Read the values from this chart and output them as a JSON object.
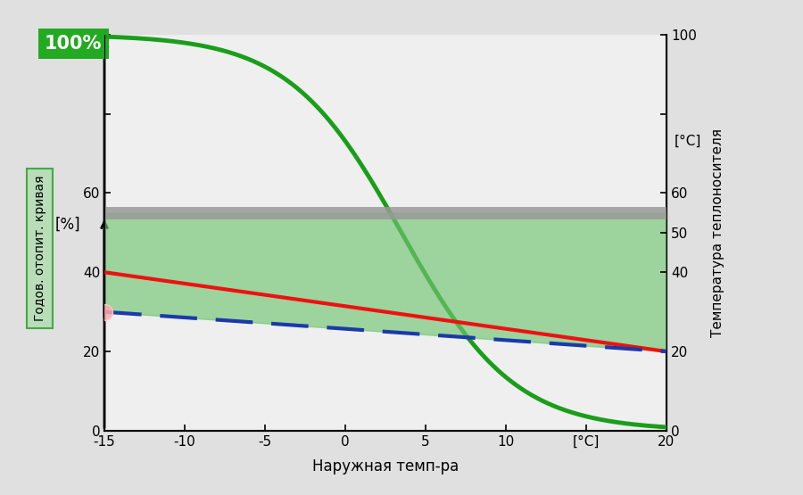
{
  "x_min": -15,
  "x_max": 20,
  "y_left_min": 0,
  "y_left_max": 100,
  "y_right_min": 0,
  "y_right_max": 100,
  "background_color": "#e0e0e0",
  "plot_bg_color": "#efefef",
  "xlabel": "Наружная темп-ра",
  "ylabel_left": "[%]",
  "ylabel_right": "Температура теплоносителя",
  "ylabel_right_unit": "[°C]",
  "ylabel_left_label": "Годов. отопит. кривая",
  "green_curve_color": "#1a9e1a",
  "red_line_color": "#ee1111",
  "blue_dashed_color": "#1a3aaa",
  "fill_color": "#72c472",
  "gray_band_color": "#999999",
  "gray_band_y": 55,
  "annotation_100_label": "100%",
  "annotation_100_color": "#22aa22",
  "pink_dot_x": -15,
  "pink_dot_y": 30,
  "pink_dot_color": "#ffaaaa",
  "x_ticks": [
    -15,
    -10,
    -5,
    0,
    5,
    10,
    15,
    20
  ],
  "x_tick_labels": [
    "-15",
    "-10",
    "-5",
    "0",
    "5",
    "10",
    "[°C]",
    "20"
  ],
  "y_left_ticks": [
    0,
    20,
    40,
    60,
    80,
    100
  ],
  "y_left_tick_labels": [
    "0",
    "20",
    "40",
    "60",
    "",
    ""
  ],
  "y_right_ticks": [
    0,
    20,
    40,
    50,
    60,
    80,
    100
  ],
  "y_right_tick_labels": [
    "0",
    "20",
    "40",
    "50",
    "60",
    "",
    "100"
  ]
}
